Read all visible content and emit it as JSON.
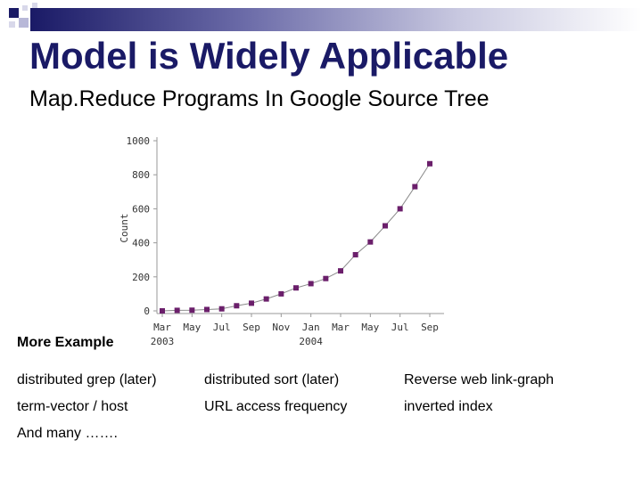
{
  "slide": {
    "title": "Model is Widely Applicable",
    "subtitle": "Map.Reduce Programs In Google Source Tree"
  },
  "colors": {
    "title": "#1a1a66",
    "marker": "#6b1f6b",
    "line": "#8a8a8a"
  },
  "chart_data": {
    "type": "line",
    "ylabel": "Count",
    "xlabel": "",
    "ylim": [
      0,
      1000
    ],
    "yticks": [
      0,
      200,
      400,
      600,
      800,
      1000
    ],
    "ytick_labels": [
      "0",
      "200",
      "400",
      "600",
      "800",
      "1000"
    ],
    "xtick_labels": [
      "Mar",
      "May",
      "Jul",
      "Sep",
      "Nov",
      "Jan",
      "Mar",
      "May",
      "Jul",
      "Sep"
    ],
    "xtick_year_labels": [
      {
        "index": 0,
        "label": "2003"
      },
      {
        "index": 5,
        "label": "2004"
      }
    ],
    "grid": false,
    "legend": "none",
    "series": [
      {
        "values": [
          0,
          3,
          4,
          8,
          12,
          30,
          45,
          70,
          100,
          135,
          160,
          190,
          235,
          330,
          405,
          500,
          600,
          730,
          865
        ]
      }
    ]
  },
  "more_examples": {
    "heading": "More Example",
    "rows": [
      [
        "distributed grep (later)",
        "distributed sort (later)",
        "Reverse web link-graph"
      ],
      [
        "term-vector / host",
        "URL access frequency",
        "inverted index"
      ],
      [
        "And many …….",
        "",
        ""
      ]
    ]
  }
}
